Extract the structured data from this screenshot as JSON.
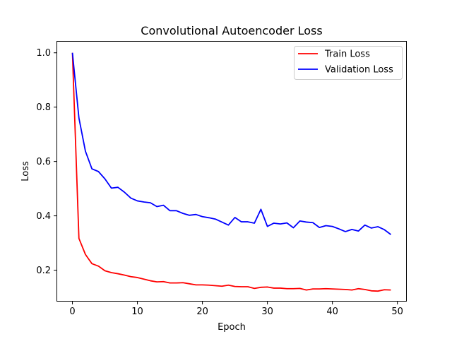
{
  "chart_data": {
    "type": "line",
    "title": "Convolutional Autoencoder Loss",
    "xlabel": "Epoch",
    "ylabel": "Loss",
    "xlim": [
      -2.45,
      51.45
    ],
    "ylim": [
      0.0845,
      1.0435
    ],
    "xticks": [
      0,
      10,
      20,
      30,
      40,
      50
    ],
    "yticks": [
      0.2,
      0.4,
      0.6,
      0.8,
      1.0
    ],
    "xtick_labels": [
      "0",
      "10",
      "20",
      "30",
      "40",
      "50"
    ],
    "ytick_labels": [
      "0.2",
      "0.4",
      "0.6",
      "0.8",
      "1.0"
    ],
    "grid": false,
    "legend_position": "upper right",
    "x": [
      0,
      1,
      2,
      3,
      4,
      5,
      6,
      7,
      8,
      9,
      10,
      11,
      12,
      13,
      14,
      15,
      16,
      17,
      18,
      19,
      20,
      21,
      22,
      23,
      24,
      25,
      26,
      27,
      28,
      29,
      30,
      31,
      32,
      33,
      34,
      35,
      36,
      37,
      38,
      39,
      40,
      41,
      42,
      43,
      44,
      45,
      46,
      47,
      48,
      49
    ],
    "series": [
      {
        "name": "Train Loss",
        "color": "#ff0000",
        "values": [
          1.0,
          0.317,
          0.258,
          0.224,
          0.215,
          0.198,
          0.191,
          0.187,
          0.182,
          0.176,
          0.173,
          0.167,
          0.161,
          0.157,
          0.158,
          0.153,
          0.153,
          0.154,
          0.15,
          0.146,
          0.146,
          0.145,
          0.143,
          0.141,
          0.145,
          0.14,
          0.139,
          0.139,
          0.133,
          0.137,
          0.138,
          0.134,
          0.134,
          0.132,
          0.132,
          0.133,
          0.127,
          0.131,
          0.131,
          0.132,
          0.131,
          0.13,
          0.129,
          0.127,
          0.132,
          0.129,
          0.124,
          0.123,
          0.128,
          0.127
        ]
      },
      {
        "name": "Validation Loss",
        "color": "#0000ff",
        "values": [
          1.0,
          0.76,
          0.638,
          0.573,
          0.563,
          0.536,
          0.502,
          0.505,
          0.487,
          0.465,
          0.455,
          0.451,
          0.448,
          0.434,
          0.439,
          0.419,
          0.419,
          0.409,
          0.402,
          0.405,
          0.397,
          0.393,
          0.388,
          0.377,
          0.366,
          0.394,
          0.378,
          0.378,
          0.373,
          0.424,
          0.361,
          0.373,
          0.37,
          0.374,
          0.356,
          0.381,
          0.377,
          0.375,
          0.357,
          0.364,
          0.361,
          0.352,
          0.342,
          0.35,
          0.344,
          0.366,
          0.355,
          0.36,
          0.349,
          0.331
        ]
      }
    ]
  }
}
